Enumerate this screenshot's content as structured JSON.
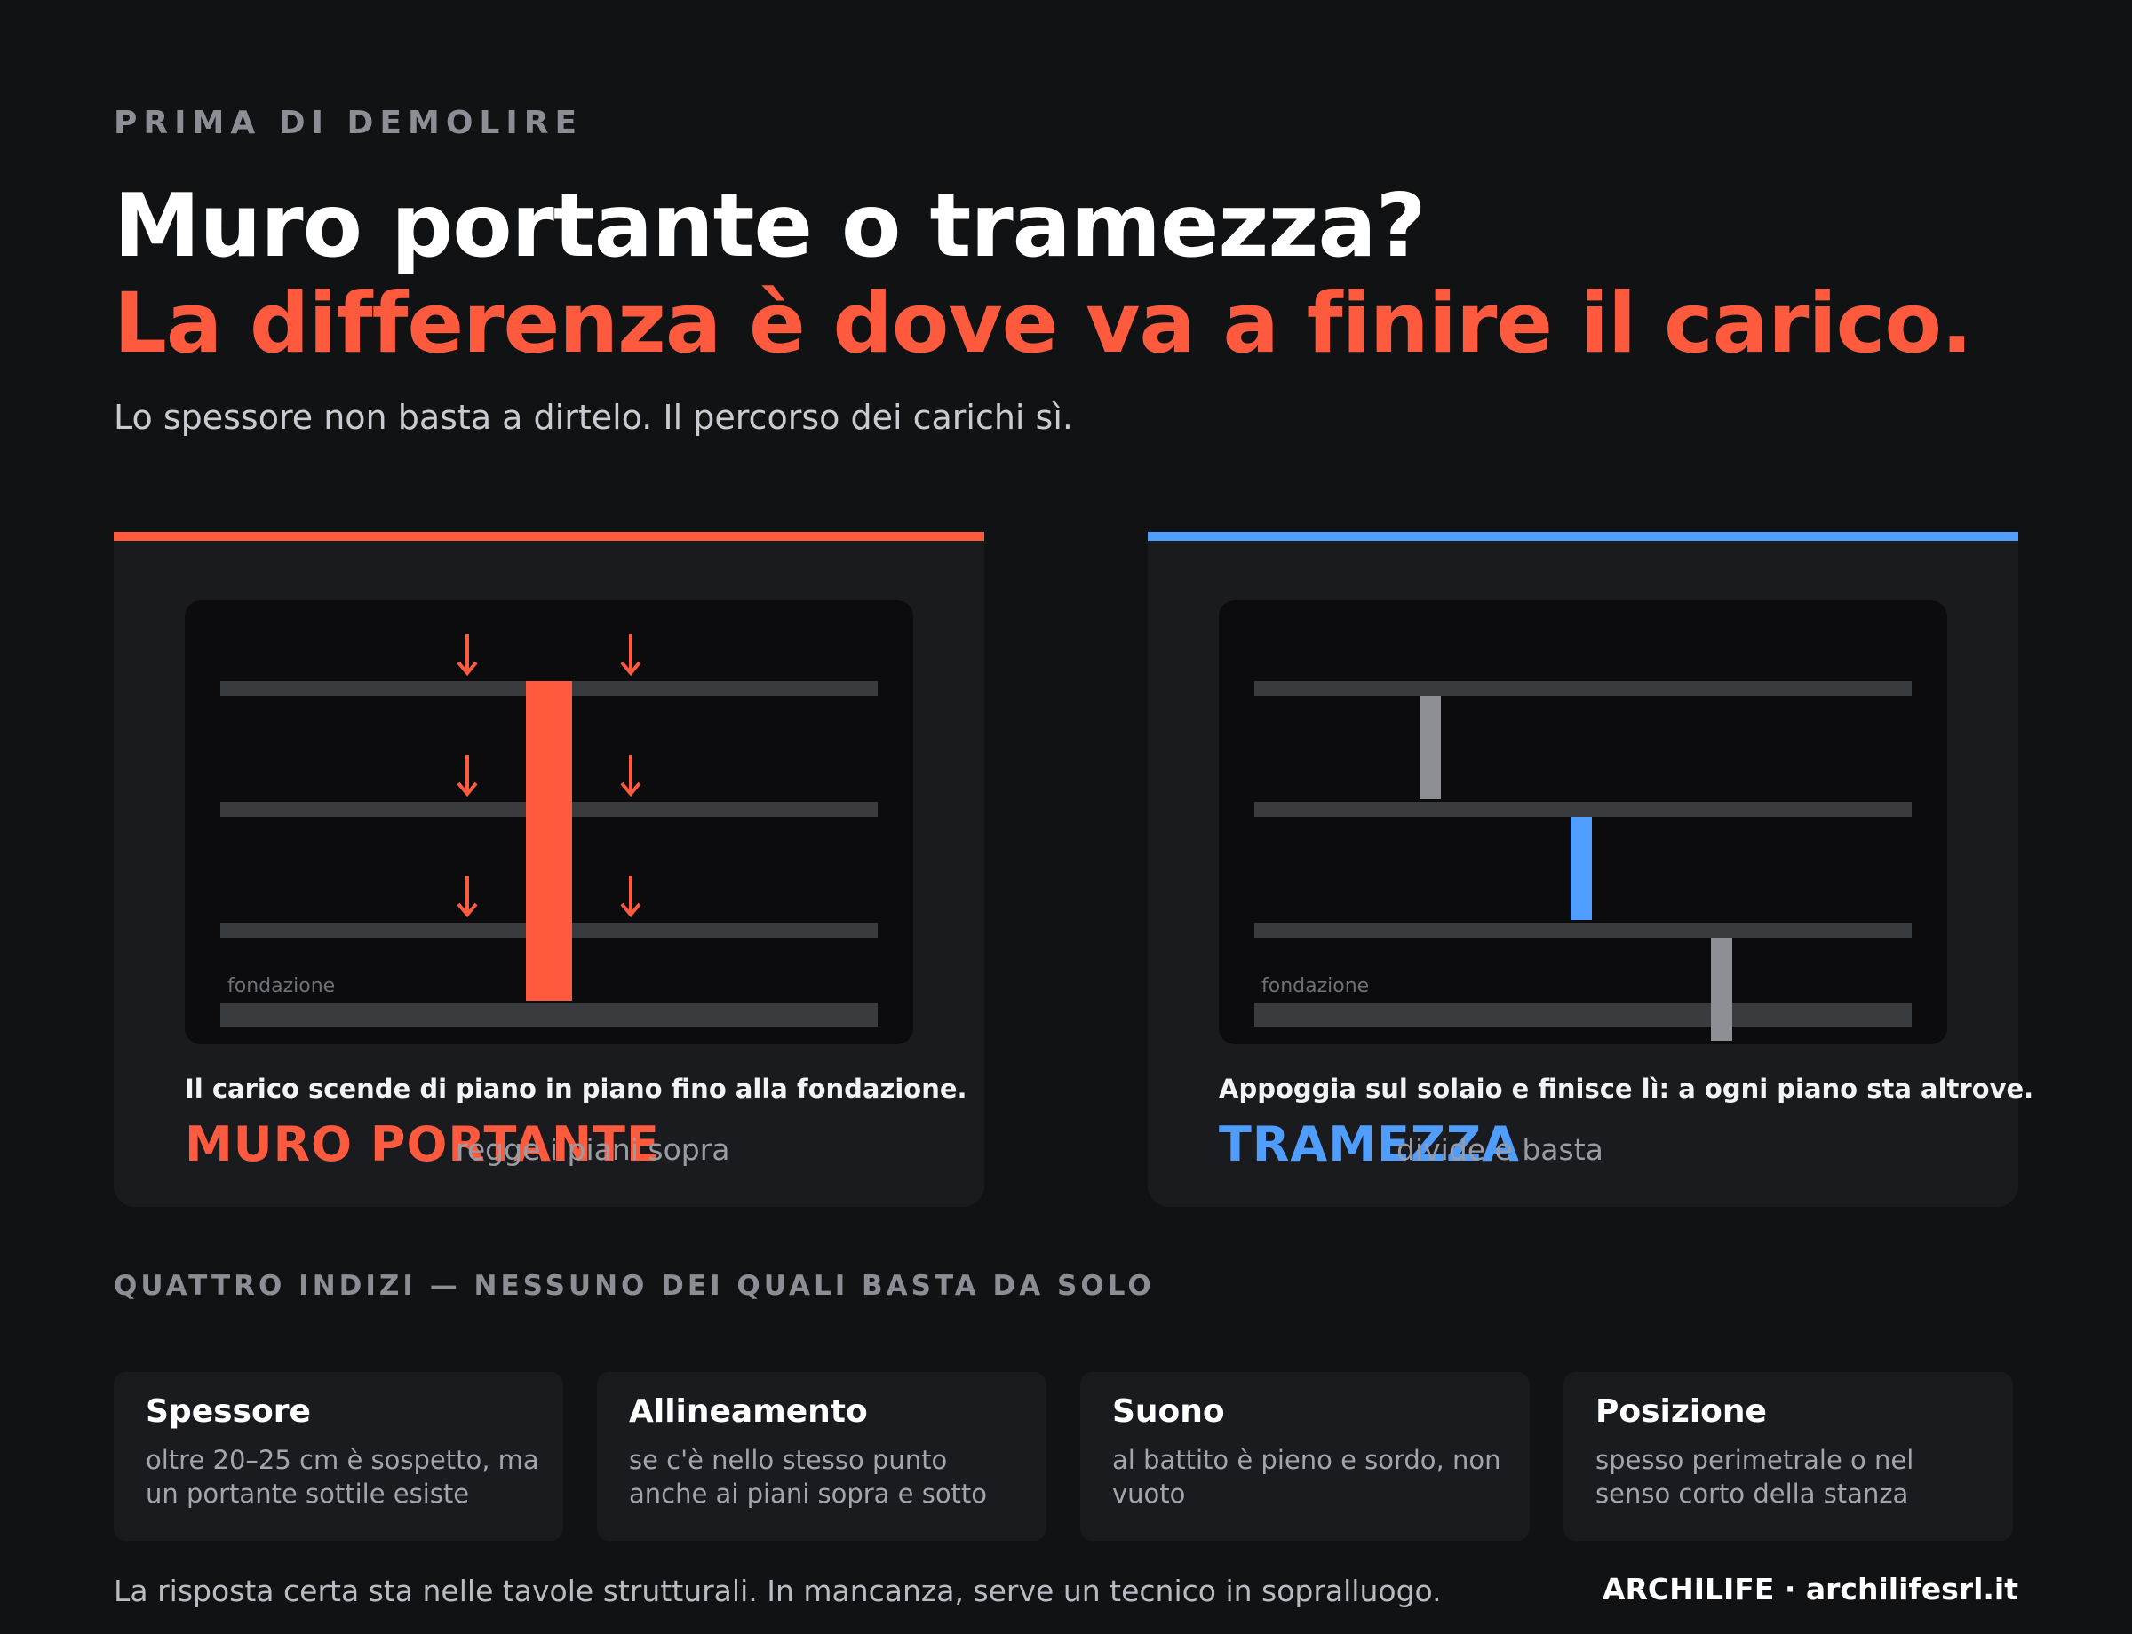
{
  "header": {
    "eyebrow": "PRIMA DI DEMOLIRE",
    "title_line1": "Muro portante o tramezza?",
    "title_line2": "La differenza è dove va a finire il carico.",
    "lead": "Lo spessore non basta a dirtelo. Il percorso dei carichi sì."
  },
  "colors": {
    "accent_red": "#ff5a3d",
    "accent_blue": "#4f9dff",
    "background": "#111214",
    "panel": "#1a1b1f",
    "slab": "#3a3b3f",
    "partition_grey": "#8e8f94"
  },
  "panels": [
    {
      "id": "bearing",
      "accent": "#ff5a3d",
      "foundation_label": "fondazione",
      "caption": "Il carico scende di piano in piano fino alla fondazione.",
      "name": "MURO PORTANTE",
      "sub": "regge i piani sopra"
    },
    {
      "id": "partition",
      "accent": "#4f9dff",
      "foundation_label": "fondazione",
      "caption": "Appoggia sul solaio e finisce lì: a ogni piano sta altrove.",
      "name": "TRAMEZZA",
      "sub": "divide e basta"
    }
  ],
  "clues": {
    "heading": "QUATTRO INDIZI — NESSUNO DEI QUALI BASTA DA SOLO",
    "items": [
      {
        "title": "Spessore",
        "desc": "oltre 20–25 cm è sospetto, ma un portante sottile esiste"
      },
      {
        "title": "Allineamento",
        "desc": "se c'è nello stesso punto anche ai piani sopra e sotto"
      },
      {
        "title": "Suono",
        "desc": "al battito è pieno e sordo, non vuoto"
      },
      {
        "title": "Posizione",
        "desc": "spesso perimetrale o nel senso corto della stanza"
      }
    ]
  },
  "footer": {
    "note": "La risposta certa sta nelle tavole strutturali. In mancanza, serve un tecnico in sopralluogo.",
    "brand": "ARCHILIFE · archilifesrl.it"
  }
}
